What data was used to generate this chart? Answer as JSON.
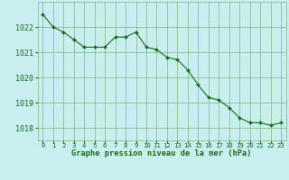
{
  "hours": [
    0,
    1,
    2,
    3,
    4,
    5,
    6,
    7,
    8,
    9,
    10,
    11,
    12,
    13,
    14,
    15,
    16,
    17,
    18,
    19,
    20,
    21,
    22,
    23
  ],
  "pressure": [
    1022.5,
    1022.0,
    1021.8,
    1021.5,
    1021.2,
    1021.2,
    1021.2,
    1021.6,
    1021.6,
    1021.8,
    1021.2,
    1021.1,
    1020.8,
    1020.7,
    1020.3,
    1019.7,
    1019.2,
    1019.1,
    1018.8,
    1018.4,
    1018.2,
    1018.2,
    1018.1,
    1018.2
  ],
  "line_color": "#1a6b1a",
  "marker_color": "#1a6b1a",
  "bg_color": "#c8eef0",
  "grid_color": "#7db87d",
  "xlabel": "Graphe pression niveau de la mer (hPa)",
  "xlabel_color": "#1a6b1a",
  "tick_color": "#1a6b1a",
  "ylim": [
    1017.5,
    1023.0
  ],
  "yticks": [
    1018,
    1019,
    1020,
    1021,
    1022
  ],
  "font_size_y": 6.0,
  "font_size_x": 5.2,
  "font_size_label": 6.2
}
